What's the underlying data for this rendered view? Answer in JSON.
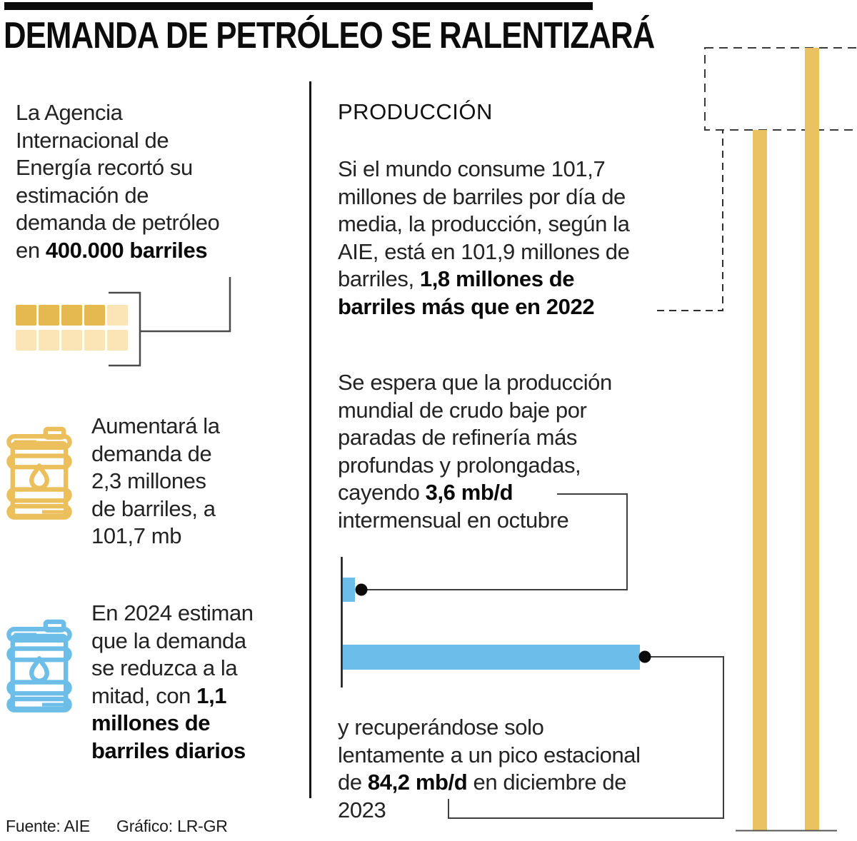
{
  "title": "DEMANDA DE PETRÓLEO SE RALENTIZARÁ",
  "left_column": {
    "intro": {
      "lines": [
        {
          "t": "La Agencia"
        },
        {
          "t": "Internacional de"
        },
        {
          "t": "Energía recortó su"
        },
        {
          "t": "estimación de"
        },
        {
          "t": "demanda de petróleo"
        },
        {
          "t": "en ",
          "b": "400.000 barriles"
        }
      ]
    },
    "demand_increase": {
      "lines": [
        {
          "t": "Aumentará la"
        },
        {
          "t": "demanda de"
        },
        {
          "t": "2,3 millones"
        },
        {
          "t": "de barriles, a"
        },
        {
          "t": "101,7 mb"
        }
      ]
    },
    "demand_2024": {
      "lines": [
        {
          "t": "En 2024 estiman"
        },
        {
          "t": "que la demanda"
        },
        {
          "t": "se reduzca a la"
        },
        {
          "t": "mitad, con ",
          "b": "1,1"
        },
        {
          "b": "millones de"
        },
        {
          "b": "barriles diarios"
        }
      ]
    }
  },
  "right_column": {
    "header": "PRODUCCIÓN",
    "p1": {
      "lines": [
        {
          "t": "Si el mundo consume 101,7"
        },
        {
          "t": "millones de barriles por día de"
        },
        {
          "t": "media, la producción, según la"
        },
        {
          "t": "AIE, está en 101,9 millones de"
        },
        {
          "t": "barriles, ",
          "b": "1,8 millones de"
        },
        {
          "b": "barriles más que en 2022"
        }
      ]
    },
    "p2": {
      "lines": [
        {
          "t": "Se espera que la producción"
        },
        {
          "t": "mundial de crudo baje por"
        },
        {
          "t": "paradas de refinería más"
        },
        {
          "t": "profundas y prolongadas,"
        },
        {
          "t": "cayendo ",
          "b": "3,6 mb/d"
        },
        {
          "t": "intermensual en octubre"
        }
      ]
    },
    "p3": {
      "lines": [
        {
          "t": "y recuperándose solo"
        },
        {
          "t": "lentamente a un pico estacional"
        },
        {
          "t": "de ",
          "b": "84,2 mb/d",
          "t2": " en diciembre de"
        },
        {
          "t": "2023"
        }
      ]
    }
  },
  "footer": {
    "source": "Fuente: AIE",
    "credit": "Gráfico: LR-GR"
  },
  "colors": {
    "accent_yellow": "#EAC262",
    "accent_yellow_dark": "#E5B94F",
    "accent_yellow_light": "#FBE5B6",
    "accent_blue": "#6CBDE9",
    "text_black": "#0c0c0c",
    "top_bar": "#0b0b0b"
  },
  "icons": [
    "oil-barrel-yellow",
    "oil-barrel-blue",
    "squares-pictogram"
  ],
  "chart_data": [
    {
      "type": "bar",
      "name": "recorte-estimacion-pictograma",
      "description": "Pictogram grid of 10 squares (2 rows x 5); 4 highlighted squares represent the demand-estimate cut",
      "total_squares": 10,
      "highlighted_squares": 4,
      "annotation": "400.000 barriles",
      "colors": {
        "highlight": "#E5B94F",
        "muted": "#FBE5B6"
      }
    },
    {
      "type": "bar",
      "name": "produccion-mensual-mbd",
      "orientation": "horizontal",
      "series": [
        {
          "label": "Caída intermensual en octubre",
          "value": 3.6,
          "unit": "mb/d"
        },
        {
          "label": "Pico estacional en diciembre de 2023",
          "value": 84.2,
          "unit": "mb/d"
        }
      ],
      "color": "#6CBDE9",
      "legend_position": "none",
      "grid": false
    },
    {
      "type": "bar",
      "name": "produccion-anual-comparacion",
      "orientation": "vertical",
      "bars": 2,
      "values_visible": {
        "produccion_2023_mb": 101.9,
        "diferencia_vs_2022_mb": 1.8
      },
      "annotation": "1,8 millones de barriles más que en 2022",
      "color": "#EAC262",
      "grid": false
    }
  ]
}
